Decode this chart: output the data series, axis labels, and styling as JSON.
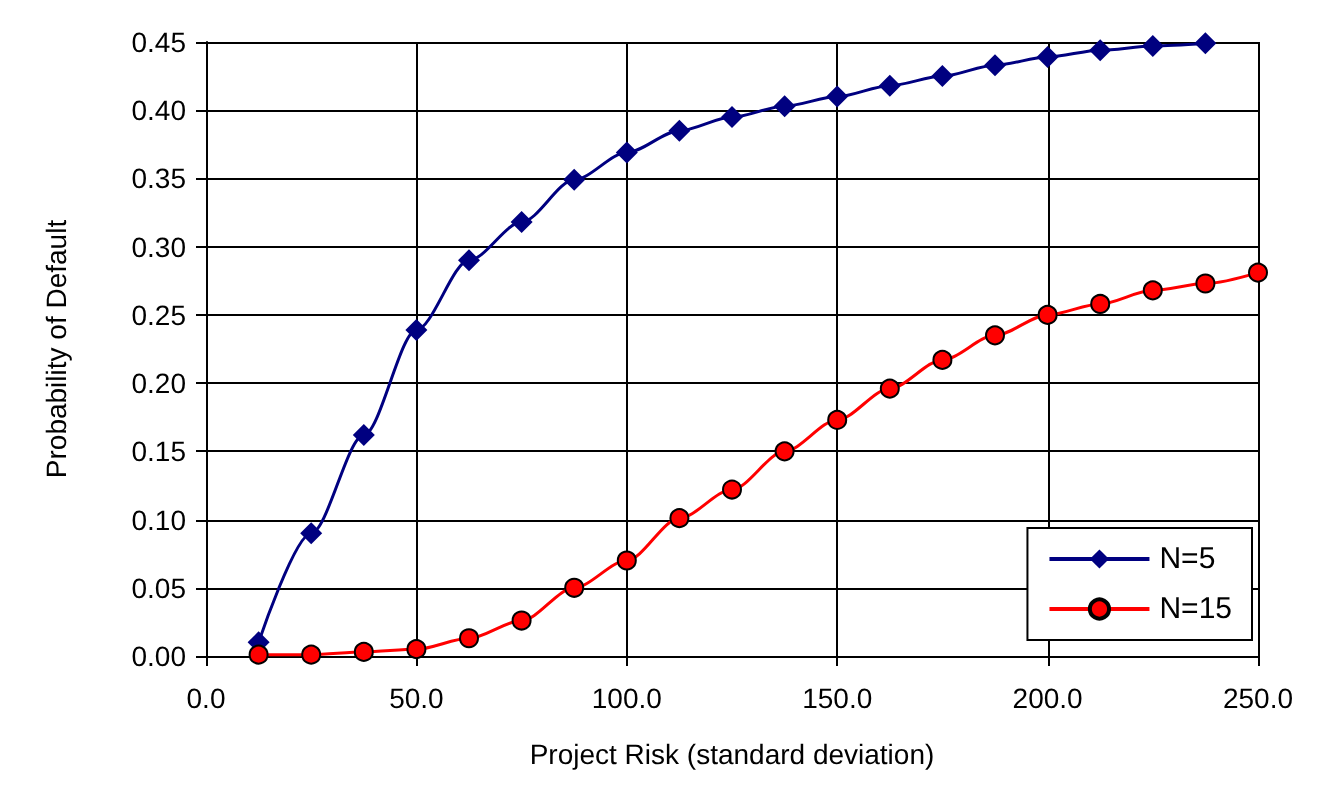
{
  "chart_data": {
    "type": "line",
    "xlabel": "Project Risk (standard deviation)",
    "ylabel": "Probability of Default",
    "x": [
      12.5,
      25,
      37.5,
      50,
      62.5,
      75,
      87.5,
      100,
      112.5,
      125,
      137.5,
      150,
      162.5,
      175,
      187.5,
      200,
      212.5,
      225,
      237.5,
      250
    ],
    "series": [
      {
        "name": "N=5",
        "color": "#000080",
        "marker": "diamond",
        "values": [
          0.01,
          0.09,
          0.162,
          0.239,
          0.29,
          0.318,
          0.349,
          0.369,
          0.385,
          0.395,
          0.403,
          0.41,
          0.418,
          0.425,
          0.433,
          0.439,
          0.444,
          0.447,
          0.449,
          null
        ]
      },
      {
        "name": "N=15",
        "color": "#ff0000",
        "marker": "circle",
        "values": [
          0.001,
          0.001,
          0.003,
          0.005,
          0.013,
          0.026,
          0.05,
          0.07,
          0.101,
          0.122,
          0.15,
          0.173,
          0.196,
          0.217,
          0.235,
          0.25,
          0.258,
          0.268,
          0.273,
          0.281
        ]
      }
    ],
    "xlim": [
      0,
      250
    ],
    "xticks": [
      {
        "value": 0,
        "label": "0.0"
      },
      {
        "value": 50,
        "label": "50.0"
      },
      {
        "value": 100,
        "label": "100.0"
      },
      {
        "value": 150,
        "label": "150.0"
      },
      {
        "value": 200,
        "label": "200.0"
      },
      {
        "value": 250,
        "label": "250.0"
      }
    ],
    "ylim": [
      0,
      0.45
    ],
    "yticks": [
      {
        "value": 0,
        "label": "0.00"
      },
      {
        "value": 0.05,
        "label": "0.05"
      },
      {
        "value": 0.1,
        "label": "0.10"
      },
      {
        "value": 0.15,
        "label": "0.15"
      },
      {
        "value": 0.2,
        "label": "0.20"
      },
      {
        "value": 0.25,
        "label": "0.25"
      },
      {
        "value": 0.3,
        "label": "0.30"
      },
      {
        "value": 0.35,
        "label": "0.35"
      },
      {
        "value": 0.4,
        "label": "0.40"
      },
      {
        "value": 0.45,
        "label": "0.45"
      }
    ],
    "grid": true,
    "legend": "bottom right",
    "line_style": "solid"
  }
}
